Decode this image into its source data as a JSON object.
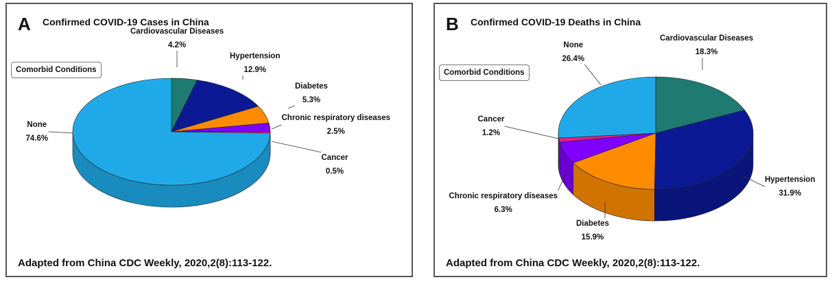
{
  "source_note": "Adapted from China CDC Weekly, 2020,2(8):113-122.",
  "legend_title": "Comorbid Conditions",
  "chart_data": [
    {
      "type": "pie",
      "panel_letter": "A",
      "title": "Confirmed COVID-19 Cases in China",
      "slices": [
        {
          "label": "Cardiovascular Diseases",
          "value": 4.2,
          "display": "4.2%",
          "color": "#1f7a72"
        },
        {
          "label": "Hypertension",
          "value": 12.9,
          "display": "12.9%",
          "color": "#0b1a94"
        },
        {
          "label": "Diabetes",
          "value": 5.3,
          "display": "5.3%",
          "color": "#ff8c00"
        },
        {
          "label": "Chronic respiratory diseases",
          "value": 2.5,
          "display": "2.5%",
          "color": "#8000ff"
        },
        {
          "label": "Cancer",
          "value": 0.5,
          "display": "0.5%",
          "color": "#e0218a"
        },
        {
          "label": "None",
          "value": 74.6,
          "display": "74.6%",
          "color": "#20a9e8"
        }
      ]
    },
    {
      "type": "pie",
      "panel_letter": "B",
      "title": "Confirmed COVID-19 Deaths in China",
      "slices": [
        {
          "label": "Cardiovascular Diseases",
          "value": 18.3,
          "display": "18.3%",
          "color": "#1f7a72"
        },
        {
          "label": "Hypertension",
          "value": 31.9,
          "display": "31.9%",
          "color": "#0b1a94"
        },
        {
          "label": "Diabetes",
          "value": 15.9,
          "display": "15.9%",
          "color": "#ff8c00"
        },
        {
          "label": "Chronic respiratory diseases",
          "value": 6.3,
          "display": "6.3%",
          "color": "#8000ff"
        },
        {
          "label": "Cancer",
          "value": 1.2,
          "display": "1.2%",
          "color": "#e0218a"
        },
        {
          "label": "None",
          "value": 26.4,
          "display": "26.4%",
          "color": "#20a9e8"
        }
      ]
    }
  ]
}
